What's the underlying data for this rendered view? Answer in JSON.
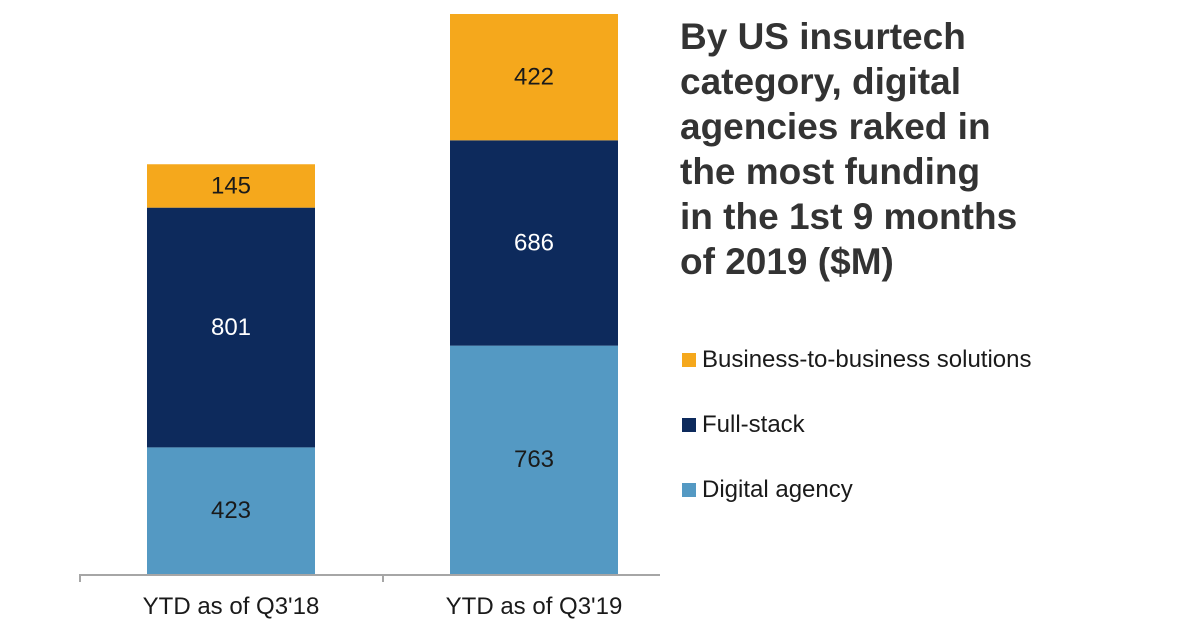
{
  "chart_data": {
    "type": "bar",
    "stacked": true,
    "title_lines": [
      "By US insurtech",
      "category, digital",
      "agencies raked in",
      "the most funding",
      "in the 1st 9 months",
      "of 2019 ($M)"
    ],
    "categories": [
      "YTD as of Q3'18",
      "YTD as of Q3'19"
    ],
    "series": [
      {
        "name": "Digital agency",
        "values": [
          423,
          763
        ],
        "color": "#5499c3",
        "label_color": "#1a1a1a"
      },
      {
        "name": "Full-stack",
        "values": [
          801,
          686
        ],
        "color": "#0d2a5c",
        "label_color": "#ffffff"
      },
      {
        "name": "Business-to-business solutions",
        "values": [
          145,
          422
        ],
        "color": "#f5a81c",
        "label_color": "#1a1a1a"
      }
    ],
    "legend_order": [
      "Business-to-business solutions",
      "Full-stack",
      "Digital agency"
    ],
    "legend_position": "right",
    "data_labels": true,
    "ylim": [
      0,
      1871
    ],
    "y_axis_visible": false,
    "grid": false
  }
}
